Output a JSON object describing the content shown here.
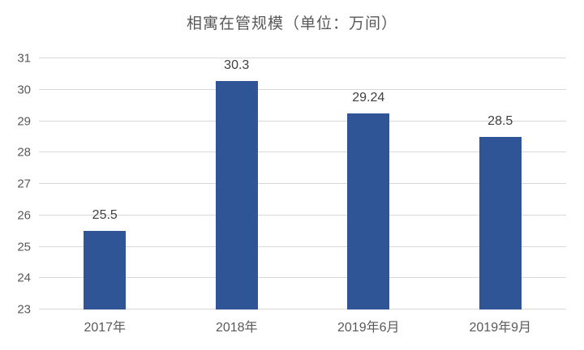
{
  "chart_data": {
    "type": "bar",
    "title": "相寓在管规模（单位：万间）",
    "categories": [
      "2017年",
      "2018年",
      "2019年6月",
      "2019年9月"
    ],
    "values": [
      25.5,
      30.3,
      29.24,
      28.5
    ],
    "value_labels": [
      "25.5",
      "30.3",
      "29.24",
      "28.5"
    ],
    "xlabel": "",
    "ylabel": "",
    "ylim": [
      23,
      31
    ],
    "y_ticks": [
      23,
      24,
      25,
      26,
      27,
      28,
      29,
      30,
      31
    ],
    "grid": "horizontal",
    "legend": "none",
    "colors": {
      "bar": "#2f5597",
      "gridline": "#d9d9d9",
      "title_text": "#595959",
      "axis_text": "#595959",
      "value_text": "#404040",
      "background": "#ffffff"
    }
  }
}
